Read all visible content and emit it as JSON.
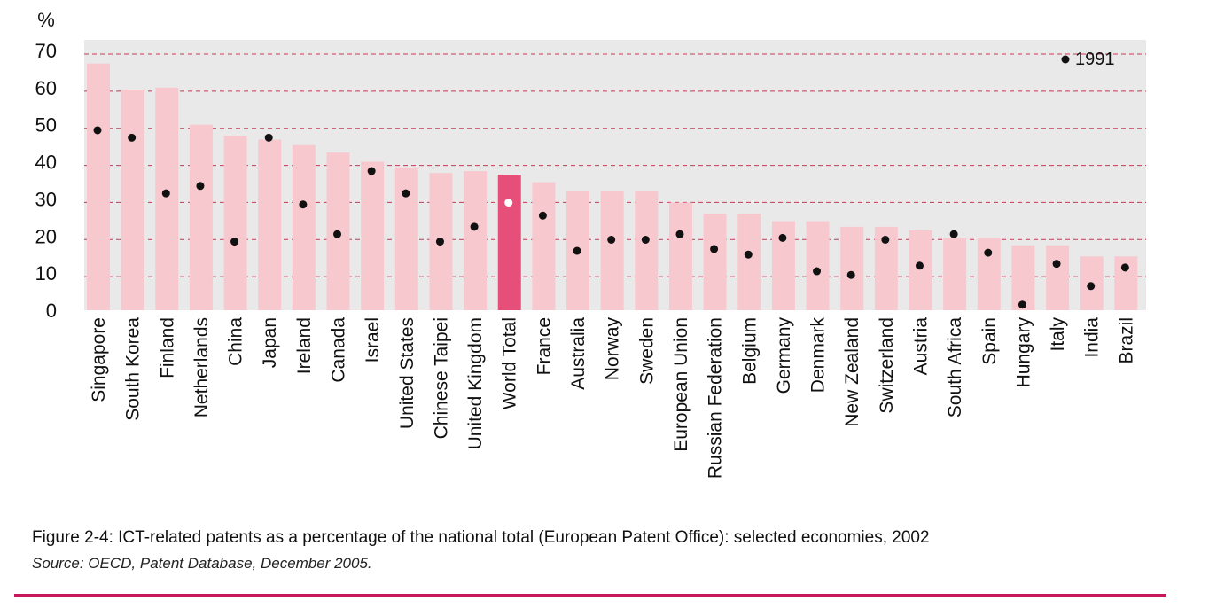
{
  "chart_data": {
    "type": "bar",
    "title": "",
    "ylabel": "%",
    "xlabel": "",
    "ylim": [
      0,
      70
    ],
    "yticks": [
      0,
      10,
      20,
      30,
      40,
      50,
      60,
      70
    ],
    "grid": true,
    "legend_position": "top-right",
    "categories": [
      "Singapore",
      "South Korea",
      "Finland",
      "Netherlands",
      "China",
      "Japan",
      "Ireland",
      "Canada",
      "Israel",
      "United States",
      "Chinese Taipei",
      "United Kingdom",
      "World Total",
      "France",
      "Australia",
      "Norway",
      "Sweden",
      "European Union",
      "Russian Federation",
      "Belgium",
      "Germany",
      "Denmark",
      "New Zealand",
      "Switzerland",
      "Austria",
      "South Africa",
      "Spain",
      "Hungary",
      "Italy",
      "India",
      "Brazil"
    ],
    "series": [
      {
        "values": [
          66.5,
          59.5,
          60,
          50,
          47,
          46,
          44.5,
          42.5,
          40,
          38.5,
          37,
          37.5,
          36.5,
          34.5,
          32,
          32,
          32,
          29,
          26,
          26,
          24,
          24,
          22.5,
          22.5,
          21.5,
          19.5,
          19.5,
          17.5,
          17.5,
          14.5,
          14.5
        ]
      },
      {
        "name": "1991",
        "type": "scatter",
        "values": [
          48.5,
          46.5,
          31.5,
          33.5,
          18.5,
          46.5,
          28.5,
          20.5,
          37.5,
          31.5,
          18.5,
          22.5,
          29,
          25.5,
          16,
          19,
          19,
          20.5,
          16.5,
          15,
          19.5,
          10.5,
          9.5,
          19,
          12,
          20.5,
          15.5,
          1.5,
          12.5,
          6.5,
          11.5
        ]
      }
    ],
    "highlight_category": "World Total",
    "colors": {
      "bar": "#f7c9cf",
      "highlight_bar": "#e64f79",
      "point": "#111111",
      "highlight_point": "#ffffff",
      "plot_bg": "#e9e9ea",
      "grid": "#c63a55"
    }
  },
  "caption": "Figure 2-4: ICT-related patents as a percentage of the national total (European Patent Office): selected economies, 2002",
  "source": "Source: OECD, Patent Database, December 2005.",
  "colors": {
    "rule": "#c8175d"
  }
}
